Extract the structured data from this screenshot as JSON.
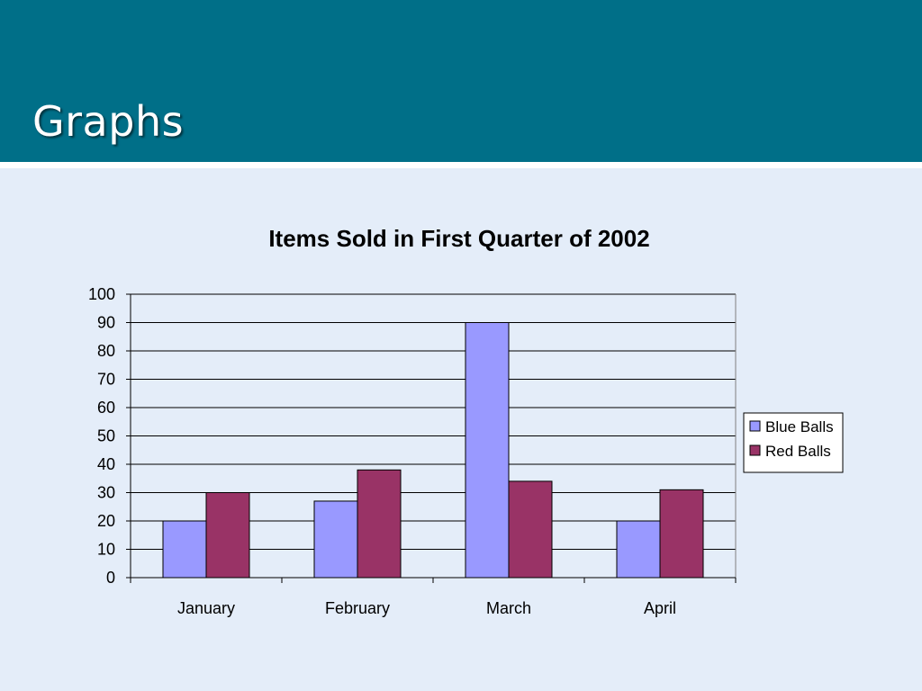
{
  "slide": {
    "title": "Graphs"
  },
  "colors": {
    "header_bg": "#006f88",
    "content_bg": "#e4edf9",
    "blue_balls": "#9999ff",
    "red_balls": "#993366"
  },
  "chart_data": {
    "type": "bar",
    "title": "Items Sold in First Quarter of 2002",
    "xlabel": "",
    "ylabel": "",
    "categories": [
      "January",
      "February",
      "March",
      "April"
    ],
    "series": [
      {
        "name": "Blue Balls",
        "color": "#9999ff",
        "values": [
          20,
          27,
          90,
          20
        ]
      },
      {
        "name": "Red Balls",
        "color": "#993366",
        "values": [
          30,
          38,
          34,
          31
        ]
      }
    ],
    "ylim": [
      0,
      100
    ],
    "yticks": [
      0,
      10,
      20,
      30,
      40,
      50,
      60,
      70,
      80,
      90,
      100
    ],
    "grid": true,
    "legend": "right"
  }
}
